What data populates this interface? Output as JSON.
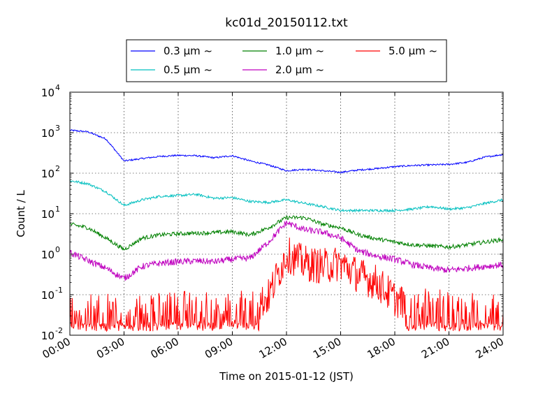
{
  "chart_data": {
    "type": "line",
    "title": "kc01d_20150112.txt",
    "xlabel": "Time on 2015-01-12 (JST)",
    "ylabel": "Count / L",
    "yscale": "log",
    "ylim": [
      0.01,
      10000
    ],
    "xlim": [
      "00:00",
      "24:00"
    ],
    "x_ticks": [
      "00:00",
      "03:00",
      "06:00",
      "09:00",
      "12:00",
      "15:00",
      "18:00",
      "21:00",
      "24:00"
    ],
    "y_ticks": [
      {
        "base": "10",
        "exp": "-2",
        "value": 0.01
      },
      {
        "base": "10",
        "exp": "-1",
        "value": 0.1
      },
      {
        "base": "10",
        "exp": "0",
        "value": 1
      },
      {
        "base": "10",
        "exp": "1",
        "value": 10
      },
      {
        "base": "10",
        "exp": "2",
        "value": 100
      },
      {
        "base": "10",
        "exp": "3",
        "value": 1000
      },
      {
        "base": "10",
        "exp": "4",
        "value": 10000
      }
    ],
    "grid": true,
    "legend_position": "top-center",
    "x": [
      "00:00",
      "01:00",
      "02:00",
      "03:00",
      "04:00",
      "05:00",
      "06:00",
      "07:00",
      "08:00",
      "09:00",
      "10:00",
      "11:00",
      "12:00",
      "13:00",
      "14:00",
      "15:00",
      "16:00",
      "17:00",
      "18:00",
      "19:00",
      "20:00",
      "21:00",
      "22:00",
      "23:00",
      "24:00"
    ],
    "series": [
      {
        "name": "0.3 μm ~",
        "color": "#0000ff",
        "noise": 0.02,
        "values": [
          1150,
          1050,
          700,
          200,
          230,
          260,
          275,
          270,
          240,
          270,
          200,
          160,
          115,
          125,
          115,
          105,
          120,
          130,
          145,
          155,
          160,
          165,
          185,
          250,
          290
        ]
      },
      {
        "name": "0.5 μm ~",
        "color": "#00bfbf",
        "noise": 0.03,
        "values": [
          65,
          55,
          35,
          16,
          22,
          27,
          28,
          30,
          24,
          25,
          20,
          19,
          22,
          18,
          15,
          12,
          12,
          12,
          12,
          13,
          15,
          13,
          14,
          18,
          22
        ]
      },
      {
        "name": "1.0 μm ~",
        "color": "#008000",
        "noise": 0.05,
        "values": [
          5.5,
          4.5,
          2.5,
          1.3,
          2.5,
          3.0,
          3.2,
          3.3,
          3.4,
          3.6,
          3.0,
          4.5,
          8.0,
          8.0,
          5.5,
          4.5,
          3.0,
          2.4,
          2.0,
          1.7,
          1.6,
          1.5,
          1.7,
          2.0,
          2.3
        ]
      },
      {
        "name": "2.0 μm ~",
        "color": "#bf00bf",
        "noise": 0.08,
        "values": [
          1.1,
          0.7,
          0.45,
          0.25,
          0.5,
          0.6,
          0.65,
          0.68,
          0.65,
          0.75,
          0.8,
          2.0,
          6.0,
          4.0,
          3.5,
          2.5,
          1.2,
          0.9,
          0.75,
          0.55,
          0.45,
          0.4,
          0.45,
          0.5,
          0.55
        ]
      },
      {
        "name": "5.0 μm ~",
        "color": "#ff0000",
        "noise": 0.45,
        "values": [
          0.025,
          0.028,
          0.025,
          0.022,
          0.025,
          0.028,
          0.03,
          0.03,
          0.025,
          0.028,
          0.04,
          0.09,
          1.0,
          0.6,
          0.5,
          0.6,
          0.3,
          0.2,
          0.08,
          0.045,
          0.035,
          0.03,
          0.03,
          0.03,
          0.03
        ]
      }
    ]
  }
}
